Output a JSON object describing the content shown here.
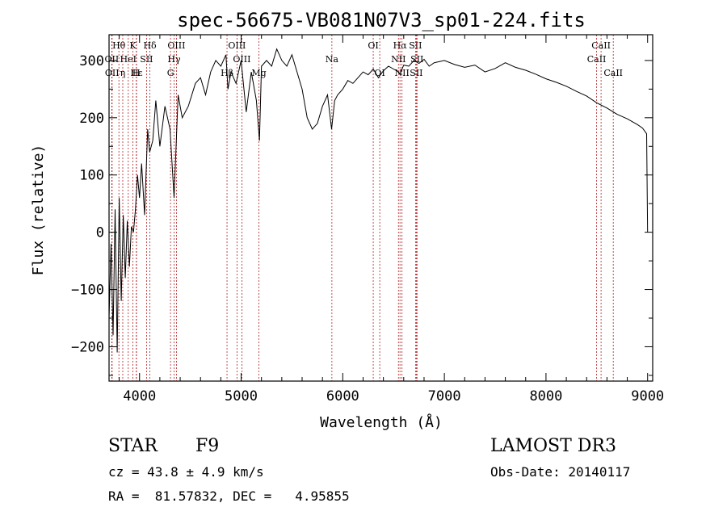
{
  "chart_data": {
    "type": "line",
    "title": "spec-56675-VB081N07V3_sp01-224.fits",
    "xlabel": "Wavelength (Å)",
    "ylabel": "Flux (relative)",
    "xlim": [
      3700,
      9050
    ],
    "ylim": [
      -260,
      345
    ],
    "xticks": [
      4000,
      5000,
      6000,
      7000,
      8000,
      9000
    ],
    "yticks": [
      -200,
      -100,
      0,
      100,
      200,
      300
    ],
    "series": [
      {
        "name": "flux",
        "x": [
          3700,
          3720,
          3740,
          3760,
          3780,
          3800,
          3820,
          3840,
          3860,
          3880,
          3900,
          3920,
          3940,
          3960,
          3980,
          4000,
          4020,
          4050,
          4080,
          4100,
          4130,
          4160,
          4200,
          4250,
          4300,
          4340,
          4380,
          4420,
          4480,
          4550,
          4600,
          4650,
          4700,
          4750,
          4800,
          4850,
          4870,
          4900,
          4950,
          5000,
          5050,
          5100,
          5150,
          5180,
          5200,
          5250,
          5300,
          5350,
          5400,
          5450,
          5500,
          5550,
          5600,
          5650,
          5700,
          5750,
          5800,
          5850,
          5890,
          5920,
          5950,
          6000,
          6050,
          6100,
          6150,
          6200,
          6250,
          6300,
          6350,
          6400,
          6450,
          6500,
          6550,
          6563,
          6600,
          6650,
          6700,
          6750,
          6800,
          6850,
          6900,
          7000,
          7100,
          7200,
          7300,
          7400,
          7500,
          7600,
          7700,
          7800,
          7900,
          8000,
          8100,
          8200,
          8300,
          8400,
          8500,
          8600,
          8700,
          8800,
          8900,
          8950,
          8990,
          9000
        ],
        "values": [
          -150,
          -20,
          -180,
          40,
          -210,
          60,
          -120,
          30,
          -80,
          20,
          -60,
          10,
          0,
          40,
          100,
          60,
          120,
          30,
          180,
          140,
          160,
          230,
          150,
          220,
          180,
          60,
          240,
          200,
          220,
          260,
          270,
          240,
          280,
          300,
          290,
          310,
          250,
          280,
          260,
          300,
          210,
          280,
          230,
          160,
          290,
          300,
          290,
          320,
          300,
          290,
          310,
          280,
          250,
          200,
          180,
          190,
          220,
          240,
          180,
          230,
          240,
          250,
          265,
          260,
          270,
          280,
          275,
          285,
          270,
          282,
          290,
          285,
          280,
          276,
          292,
          290,
          300,
          295,
          302,
          290,
          296,
          300,
          293,
          288,
          292,
          280,
          286,
          296,
          288,
          283,
          276,
          268,
          262,
          255,
          246,
          238,
          226,
          217,
          206,
          198,
          188,
          182,
          172,
          0
        ]
      }
    ],
    "lines": [
      {
        "label": "Hθ",
        "wl": 3797,
        "row": 0
      },
      {
        "label": "OII",
        "wl": 3727,
        "row": 1
      },
      {
        "label": "OII",
        "wl": 3730,
        "row": 2
      },
      {
        "label": "K",
        "wl": 3934,
        "row": 0
      },
      {
        "label": "Hε",
        "wl": 3970,
        "row": 2
      },
      {
        "label": "HeI",
        "wl": 3889,
        "row": 1
      },
      {
        "label": "η",
        "wl": 3835,
        "row": 2
      },
      {
        "label": "SII",
        "wl": 4069,
        "row": 1
      },
      {
        "label": "H",
        "wl": 3968,
        "row": 2
      },
      {
        "label": "Hδ",
        "wl": 4102,
        "row": 0
      },
      {
        "label": "OIII",
        "wl": 4363,
        "row": 0
      },
      {
        "label": "Hγ",
        "wl": 4340,
        "row": 1
      },
      {
        "label": "G",
        "wl": 4305,
        "row": 2
      },
      {
        "label": "OIII",
        "wl": 4959,
        "row": 0
      },
      {
        "label": "OIII",
        "wl": 5007,
        "row": 1
      },
      {
        "label": "Hβ",
        "wl": 4861,
        "row": 2
      },
      {
        "label": "Mg",
        "wl": 5175,
        "row": 2
      },
      {
        "label": "Na",
        "wl": 5893,
        "row": 1
      },
      {
        "label": "OI",
        "wl": 6300,
        "row": 0
      },
      {
        "label": "OI",
        "wl": 6364,
        "row": 2
      },
      {
        "label": "Hα",
        "wl": 6563,
        "row": 0
      },
      {
        "label": "NII",
        "wl": 6548,
        "row": 1
      },
      {
        "label": "NII",
        "wl": 6583,
        "row": 2
      },
      {
        "label": "SII",
        "wl": 6716,
        "row": 0
      },
      {
        "label": "SII",
        "wl": 6731,
        "row": 1
      },
      {
        "label": "SII",
        "wl": 6724,
        "row": 2
      },
      {
        "label": "CaII",
        "wl": 8542,
        "row": 0
      },
      {
        "label": "CaII",
        "wl": 8498,
        "row": 1
      },
      {
        "label": "CaII",
        "wl": 8662,
        "row": 2
      }
    ]
  },
  "info": {
    "object_class": "STAR",
    "subclass": "F9",
    "survey": "LAMOST DR3",
    "cz": "cz = 43.8 ± 4.9 km/s",
    "obs_date": "Obs-Date: 20140117",
    "coords": "RA =  81.57832, DEC =   4.95855"
  },
  "colors": {
    "line_marker": "#b22222",
    "axes": "#000000"
  }
}
